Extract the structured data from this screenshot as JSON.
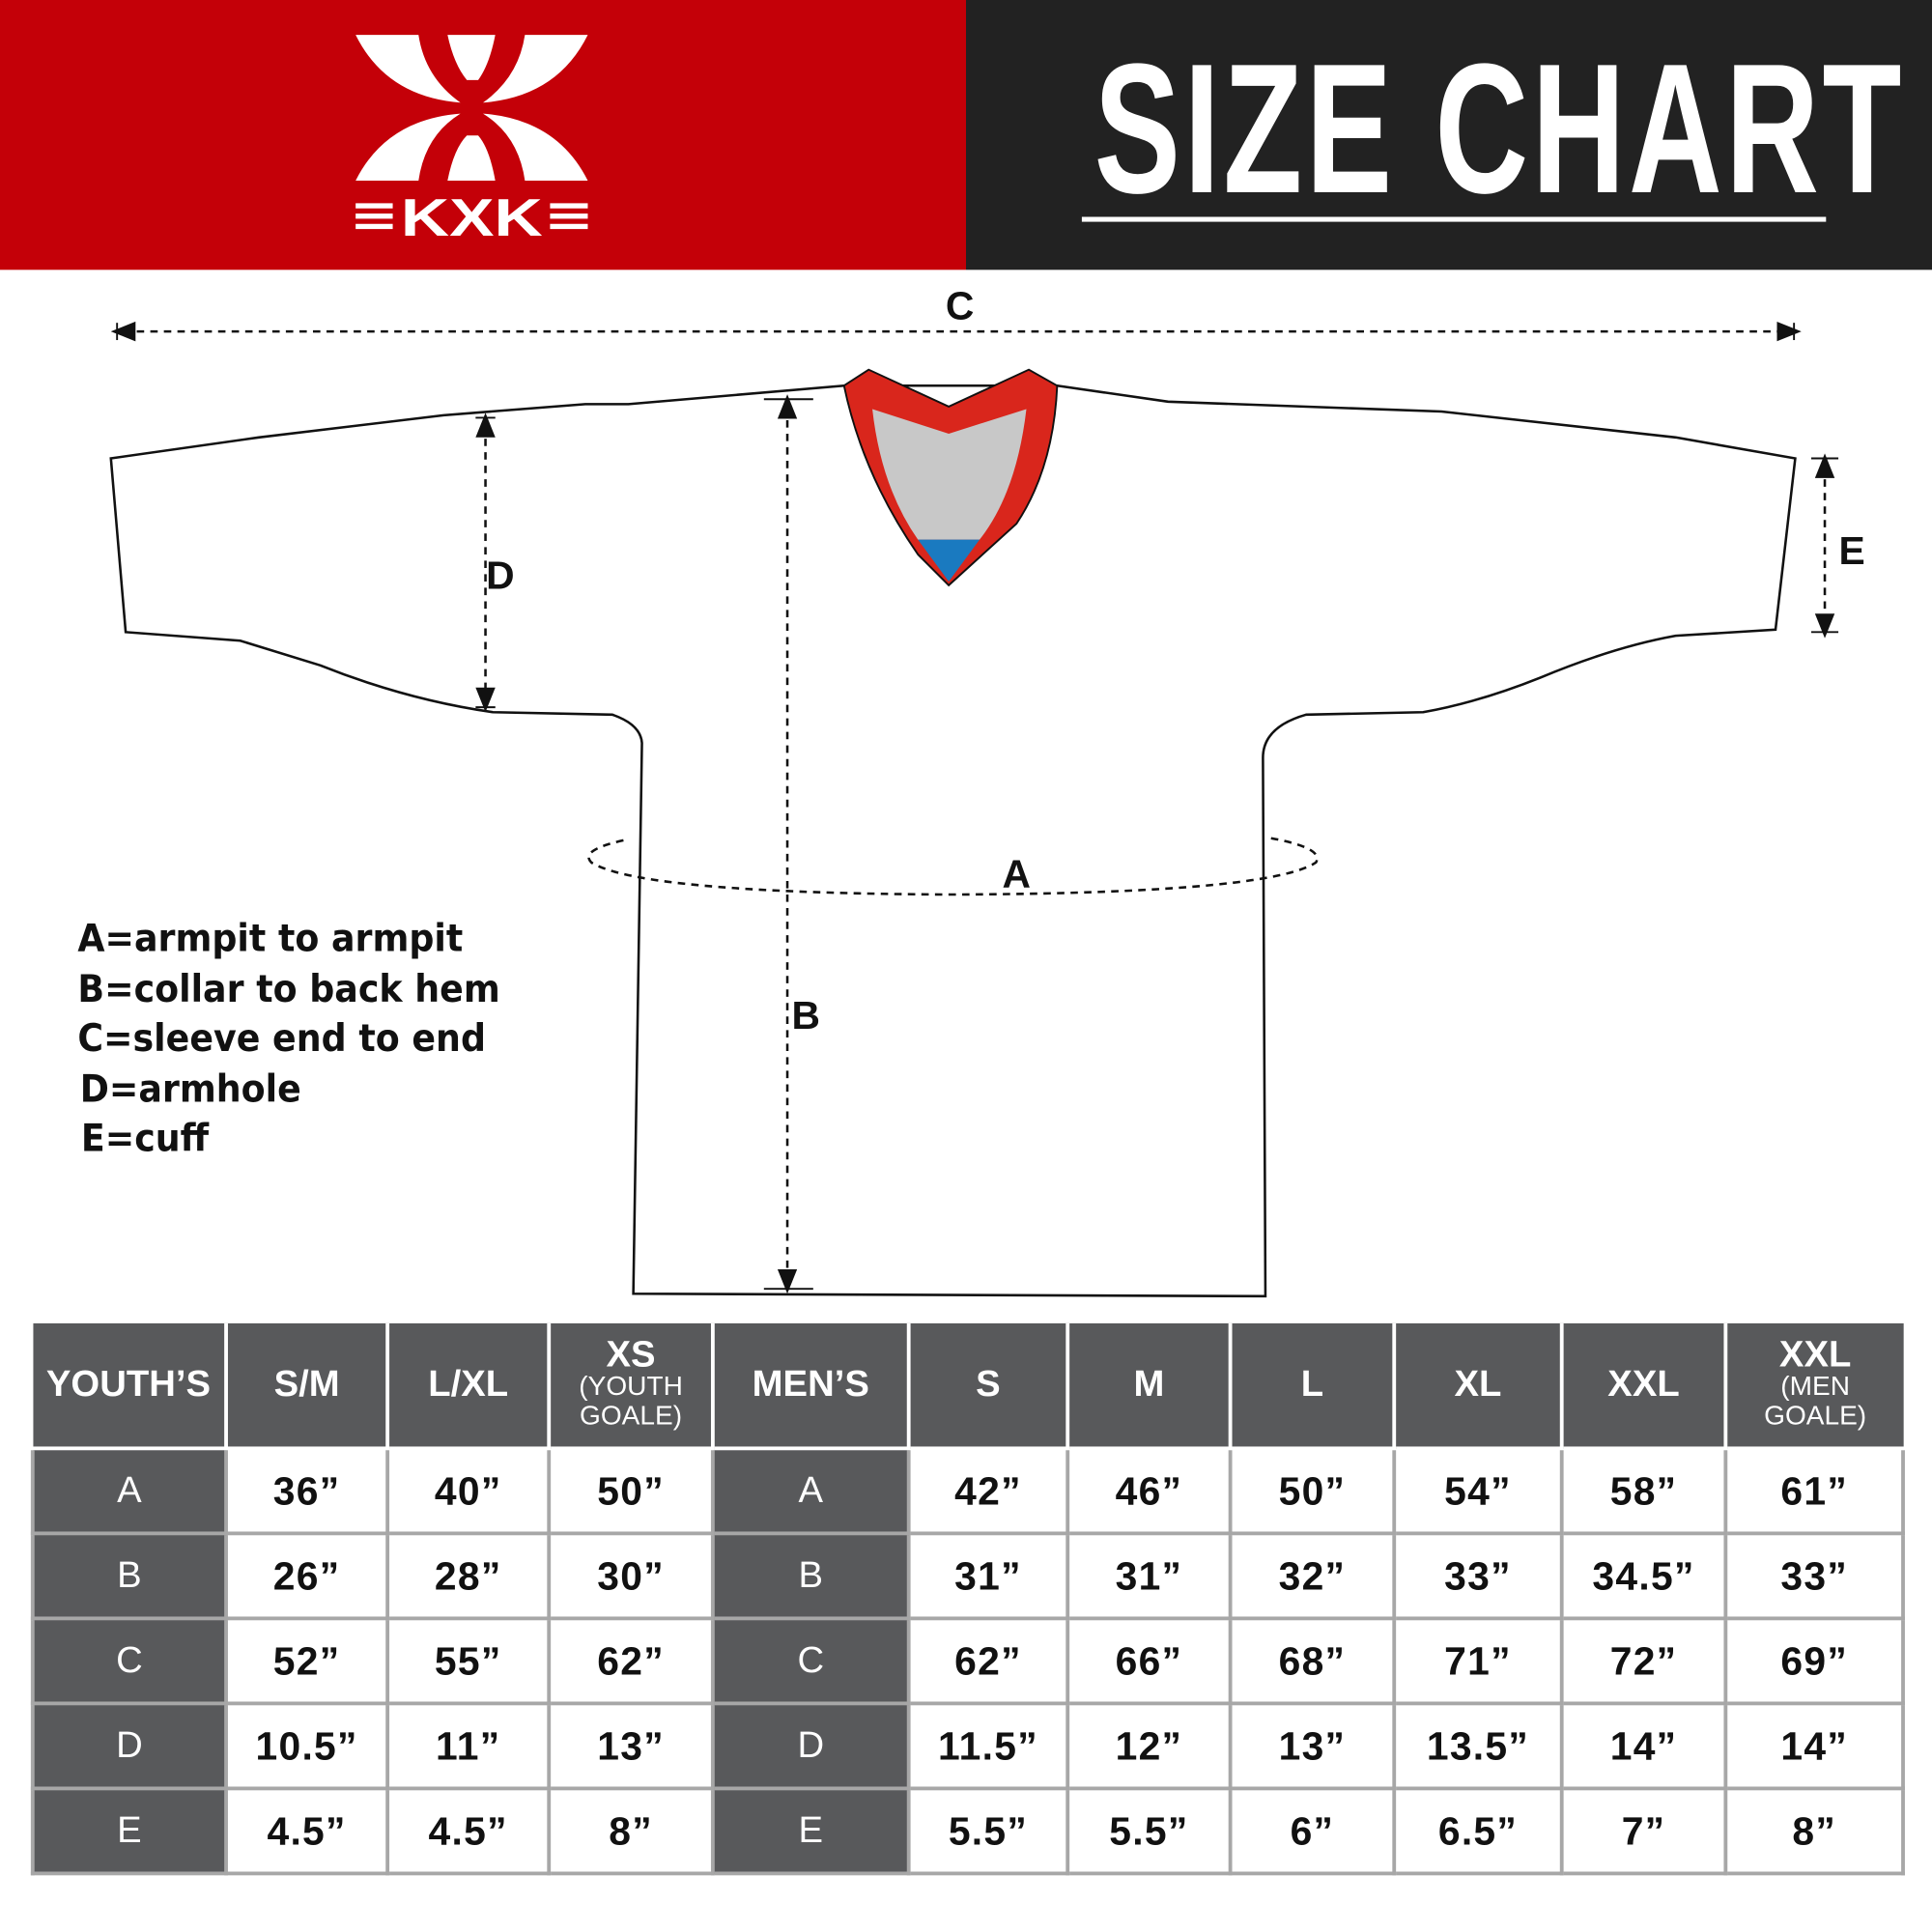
{
  "logo": {
    "text": "KXK",
    "bg_color": "#c40008"
  },
  "header": {
    "title": "SIZE CHART",
    "bg_color": "#222222"
  },
  "diagram": {
    "labels": {
      "a": "A",
      "b": "B",
      "c": "C",
      "d": "D",
      "e": "E"
    },
    "collar_colors": {
      "trim": "#d9261c",
      "inner": "#c8c8c8",
      "tip": "#1a7ac0"
    }
  },
  "legend": [
    "A=armpit to armpit",
    "B=collar to back hem",
    "C=sleeve end to end",
    "D=armhole",
    "E=cuff"
  ],
  "table": {
    "youth_header": "YOUTH’S",
    "youth_sizes": [
      "S/M",
      "L/XL"
    ],
    "youth_goalie": {
      "size": "XS",
      "note": "(YOUTH GOALE)"
    },
    "mens_header": "MEN’S",
    "mens_sizes": [
      "S",
      "M",
      "L",
      "XL",
      "XXL"
    ],
    "mens_goalie": {
      "size": "XXL",
      "note": "(MEN GOALE)"
    },
    "rows": [
      {
        "label": "A",
        "youth": [
          "36”",
          "40”",
          "50”"
        ],
        "mens": [
          "42”",
          "46”",
          "50”",
          "54”",
          "58”",
          "61”"
        ]
      },
      {
        "label": "B",
        "youth": [
          "26”",
          "28”",
          "30”"
        ],
        "mens": [
          "31”",
          "31”",
          "32”",
          "33”",
          "34.5”",
          "33”"
        ]
      },
      {
        "label": "C",
        "youth": [
          "52”",
          "55”",
          "62”"
        ],
        "mens": [
          "62”",
          "66”",
          "68”",
          "71”",
          "72”",
          "69”"
        ]
      },
      {
        "label": "D",
        "youth": [
          "10.5”",
          "11”",
          "13”"
        ],
        "mens": [
          "11.5”",
          "12”",
          "13”",
          "13.5”",
          "14”",
          "14”"
        ]
      },
      {
        "label": "E",
        "youth": [
          "4.5”",
          "4.5”",
          "8”"
        ],
        "mens": [
          "5.5”",
          "5.5”",
          "6”",
          "6.5”",
          "7”",
          "8”"
        ]
      }
    ]
  }
}
